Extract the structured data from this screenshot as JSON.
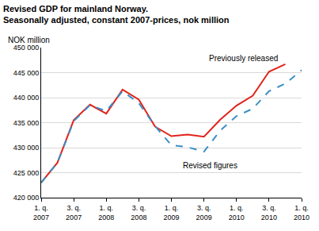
{
  "chart_data": {
    "type": "line",
    "title": "Revised GDP for mainland Norway. Seasonally adjusted, constant 2007-prices, nok million",
    "y_label": "NOK million",
    "categories": [
      "1. q. 2007",
      null,
      "3. q. 2007",
      null,
      "1. q. 2008",
      null,
      "3. q. 2008",
      null,
      "1. q. 2009",
      null,
      "3. q. 2009",
      null,
      "1. q. 2010",
      null,
      "3. q. 2010",
      null,
      "1. q. 2010"
    ],
    "series": [
      {
        "name": "Previously released",
        "color": "#e2231a",
        "line_style": "solid",
        "values": [
          423000,
          427000,
          435500,
          438600,
          436800,
          441600,
          439600,
          434200,
          432300,
          432600,
          432200,
          435600,
          438400,
          440400,
          445200,
          446700,
          null
        ]
      },
      {
        "name": "Revised figures",
        "color": "#3a8fc7",
        "line_style": "dash",
        "values": [
          423000,
          427000,
          435300,
          438500,
          437300,
          441300,
          438900,
          434300,
          430500,
          430100,
          429200,
          433400,
          436300,
          437800,
          441300,
          442800,
          445500
        ]
      }
    ],
    "annotations": [
      {
        "text": "Previously released",
        "x": 10.2,
        "y": 447800,
        "color": "#000000"
      },
      {
        "text": "Revised figures",
        "x": 8.6,
        "y": 426400,
        "color": "#000000"
      }
    ],
    "ylim": [
      420000,
      450000
    ],
    "yticks": [
      {
        "value": 420000,
        "label": "420 000"
      },
      {
        "value": 425000,
        "label": "425 000"
      },
      {
        "value": 430000,
        "label": "430 000"
      },
      {
        "value": 435000,
        "label": "435 000"
      },
      {
        "value": 440000,
        "label": "440 000"
      },
      {
        "value": 445000,
        "label": "445 000"
      },
      {
        "value": 450000,
        "label": "450 000"
      }
    ],
    "grid": true
  }
}
